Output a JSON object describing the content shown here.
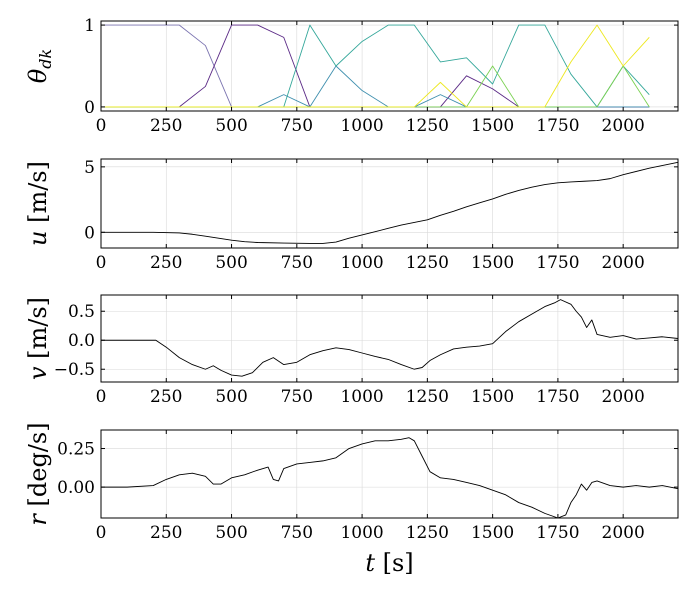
{
  "chart_data": [
    {
      "type": "line",
      "ylabel": "θ_dk",
      "ylabel_main": "θ",
      "ylabel_sub": "dk",
      "xlim": [
        0,
        2210
      ],
      "ylim": [
        -0.05,
        1.05
      ],
      "grid": true,
      "xticks": [
        0,
        250,
        500,
        750,
        1000,
        1250,
        1500,
        1750,
        2000
      ],
      "yticks": [
        0,
        1
      ],
      "xtick_labels": [
        "0",
        "250",
        "500",
        "750",
        "1000",
        "1250",
        "1500",
        "1750",
        "2000"
      ],
      "ytick_labels": [
        "0",
        "1"
      ],
      "series": [
        {
          "color": "#7b74b0",
          "x": [
            0,
            300,
            400,
            500,
            600,
            700,
            800,
            900,
            1000,
            1100,
            1200,
            1300,
            1400,
            1500,
            1600,
            1700,
            1800,
            1900,
            2000,
            2100
          ],
          "y": [
            1,
            1,
            0.75,
            0,
            0,
            0,
            0,
            0,
            0,
            0,
            0,
            0,
            0,
            0,
            0,
            0,
            0,
            0,
            0,
            0
          ]
        },
        {
          "color": "#5b2a86",
          "x": [
            0,
            300,
            400,
            500,
            600,
            700,
            800,
            900,
            1000,
            1100,
            1200,
            1300,
            1400,
            1500,
            1600,
            1700,
            1800,
            1900,
            2000,
            2100
          ],
          "y": [
            0,
            0,
            0.25,
            1,
            1,
            0.85,
            0,
            0,
            0,
            0,
            0,
            0,
            0.38,
            0.22,
            0,
            0,
            0,
            0,
            0,
            0
          ]
        },
        {
          "color": "#3f8fae",
          "x": [
            0,
            300,
            400,
            500,
            600,
            700,
            800,
            900,
            1000,
            1100,
            1200,
            1300,
            1400,
            1500,
            1600,
            1700,
            1800,
            1900,
            2000,
            2100
          ],
          "y": [
            0,
            0,
            0,
            0,
            0,
            0.15,
            0,
            0.5,
            0.2,
            0,
            0,
            0.15,
            0,
            0,
            0,
            0,
            0,
            0,
            0,
            0
          ]
        },
        {
          "color": "#34a79a",
          "x": [
            0,
            300,
            400,
            500,
            600,
            700,
            800,
            900,
            1000,
            1100,
            1200,
            1300,
            1400,
            1500,
            1600,
            1700,
            1800,
            1900,
            2000,
            2100
          ],
          "y": [
            0,
            0,
            0,
            0,
            0,
            0,
            1,
            0.5,
            0.8,
            1,
            1,
            0.55,
            0.6,
            0.28,
            1,
            1,
            0.4,
            0,
            0.5,
            0.15
          ]
        },
        {
          "color": "#7ad151",
          "x": [
            0,
            300,
            400,
            500,
            600,
            700,
            800,
            900,
            1000,
            1100,
            1200,
            1300,
            1400,
            1500,
            1600,
            1700,
            1800,
            1900,
            2000,
            2100
          ],
          "y": [
            0,
            0,
            0,
            0,
            0,
            0,
            0,
            0,
            0,
            0,
            0,
            0,
            0,
            0.5,
            0,
            0,
            0,
            0,
            0.5,
            0
          ]
        },
        {
          "color": "#ede81f",
          "x": [
            0,
            300,
            400,
            500,
            600,
            700,
            800,
            900,
            1000,
            1100,
            1200,
            1300,
            1400,
            1500,
            1600,
            1700,
            1800,
            1900,
            2000,
            2100
          ],
          "y": [
            0,
            0,
            0,
            0,
            0,
            0,
            0,
            0,
            0,
            0,
            0,
            0.3,
            0,
            0,
            0,
            0,
            0.55,
            1,
            0.5,
            0.85
          ]
        }
      ]
    },
    {
      "type": "line",
      "ylabel": "u [m/s]",
      "ylabel_main": "u",
      "ylabel_unit": " [m/s]",
      "xlim": [
        0,
        2210
      ],
      "ylim": [
        -1.2,
        5.6
      ],
      "grid": true,
      "xticks": [
        0,
        250,
        500,
        750,
        1000,
        1250,
        1500,
        1750,
        2000
      ],
      "yticks": [
        0,
        5
      ],
      "xtick_labels": [
        "0",
        "250",
        "500",
        "750",
        "1000",
        "1250",
        "1500",
        "1750",
        "2000"
      ],
      "ytick_labels": [
        "0",
        "5"
      ],
      "series": [
        {
          "color": "#000000",
          "x": [
            0,
            100,
            200,
            300,
            350,
            400,
            450,
            500,
            550,
            600,
            700,
            800,
            850,
            900,
            950,
            1000,
            1050,
            1100,
            1150,
            1200,
            1250,
            1300,
            1350,
            1400,
            1450,
            1500,
            1550,
            1600,
            1650,
            1700,
            1750,
            1800,
            1850,
            1900,
            1950,
            2000,
            2100,
            2210
          ],
          "y": [
            0,
            0,
            0,
            -0.05,
            -0.15,
            -0.3,
            -0.45,
            -0.6,
            -0.72,
            -0.78,
            -0.82,
            -0.85,
            -0.85,
            -0.75,
            -0.45,
            -0.2,
            0.05,
            0.3,
            0.55,
            0.75,
            0.95,
            1.3,
            1.6,
            1.95,
            2.25,
            2.55,
            2.9,
            3.2,
            3.45,
            3.65,
            3.78,
            3.85,
            3.9,
            3.95,
            4.1,
            4.4,
            4.9,
            5.35
          ]
        }
      ]
    },
    {
      "type": "line",
      "ylabel": "v [m/s]",
      "ylabel_main": "v",
      "ylabel_unit": " [m/s]",
      "xlim": [
        0,
        2210
      ],
      "ylim": [
        -0.72,
        0.78
      ],
      "grid": true,
      "xticks": [
        0,
        250,
        500,
        750,
        1000,
        1250,
        1500,
        1750,
        2000
      ],
      "yticks": [
        0.5,
        0.0,
        -0.5
      ],
      "xtick_labels": [
        "0",
        "250",
        "500",
        "750",
        "1000",
        "1250",
        "1500",
        "1750",
        "2000"
      ],
      "ytick_labels": [
        "0.5",
        "0.0",
        "−0.5"
      ],
      "series": [
        {
          "color": "#000000",
          "x": [
            0,
            100,
            210,
            250,
            300,
            350,
            400,
            430,
            460,
            500,
            540,
            580,
            620,
            660,
            700,
            750,
            800,
            850,
            900,
            950,
            1000,
            1050,
            1100,
            1150,
            1200,
            1230,
            1260,
            1300,
            1350,
            1400,
            1450,
            1500,
            1550,
            1600,
            1650,
            1700,
            1740,
            1760,
            1800,
            1820,
            1840,
            1860,
            1880,
            1900,
            1950,
            2000,
            2050,
            2100,
            2150,
            2210
          ],
          "y": [
            0,
            0,
            0,
            -0.12,
            -0.3,
            -0.42,
            -0.5,
            -0.44,
            -0.52,
            -0.6,
            -0.62,
            -0.56,
            -0.38,
            -0.3,
            -0.42,
            -0.38,
            -0.25,
            -0.18,
            -0.13,
            -0.16,
            -0.22,
            -0.28,
            -0.33,
            -0.42,
            -0.5,
            -0.47,
            -0.35,
            -0.25,
            -0.15,
            -0.12,
            -0.1,
            -0.06,
            0.15,
            0.32,
            0.45,
            0.58,
            0.65,
            0.7,
            0.62,
            0.5,
            0.4,
            0.22,
            0.35,
            0.1,
            0.05,
            0.08,
            0.02,
            0.04,
            0.06,
            0.03
          ]
        }
      ]
    },
    {
      "type": "line",
      "ylabel": "r [deg/s]",
      "ylabel_main": "r",
      "ylabel_unit": " [deg/s]",
      "xlabel": "t [s]",
      "xlabel_main": "t",
      "xlabel_unit": " [s]",
      "xlim": [
        0,
        2210
      ],
      "ylim": [
        -0.2,
        0.37
      ],
      "grid": true,
      "xticks": [
        0,
        250,
        500,
        750,
        1000,
        1250,
        1500,
        1750,
        2000
      ],
      "yticks": [
        0.25,
        0.0
      ],
      "xtick_labels": [
        "0",
        "250",
        "500",
        "750",
        "1000",
        "1250",
        "1500",
        "1750",
        "2000"
      ],
      "ytick_labels": [
        "0.25",
        "0.00"
      ],
      "series": [
        {
          "color": "#000000",
          "x": [
            0,
            100,
            200,
            250,
            300,
            350,
            400,
            430,
            460,
            500,
            550,
            600,
            640,
            660,
            680,
            700,
            750,
            800,
            850,
            900,
            950,
            1000,
            1050,
            1100,
            1150,
            1180,
            1200,
            1230,
            1260,
            1300,
            1350,
            1400,
            1450,
            1500,
            1550,
            1600,
            1650,
            1700,
            1750,
            1780,
            1800,
            1820,
            1840,
            1860,
            1880,
            1900,
            1950,
            2000,
            2050,
            2100,
            2150,
            2210
          ],
          "y": [
            0,
            0,
            0.01,
            0.05,
            0.08,
            0.09,
            0.07,
            0.02,
            0.02,
            0.06,
            0.08,
            0.11,
            0.13,
            0.05,
            0.04,
            0.12,
            0.15,
            0.16,
            0.17,
            0.19,
            0.25,
            0.28,
            0.3,
            0.3,
            0.31,
            0.32,
            0.3,
            0.2,
            0.1,
            0.06,
            0.05,
            0.03,
            0.01,
            -0.02,
            -0.05,
            -0.1,
            -0.13,
            -0.17,
            -0.2,
            -0.18,
            -0.1,
            -0.05,
            0.02,
            -0.02,
            0.03,
            0.04,
            0.01,
            0.0,
            0.01,
            0.0,
            0.01,
            -0.01
          ]
        }
      ]
    }
  ]
}
